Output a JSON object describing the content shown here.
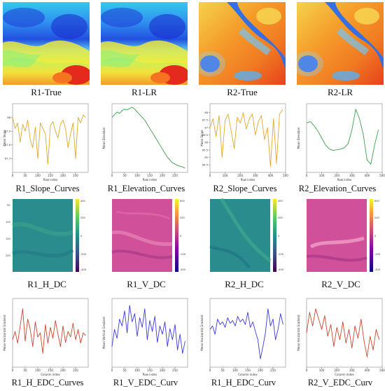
{
  "figure": {
    "captions": [
      "R1-True",
      "R1-LR",
      "R2-True",
      "R2-LR",
      "R1_Slope_Curves",
      "R1_Elevation_Curves",
      "R2_Slope_Curves",
      "R2_Elevation_Curves",
      "R1_H_DC",
      "R1_V_DC",
      "R2_H_DC",
      "R2_V_DC",
      "R1_H_EDC_Curves",
      "R1_V_EDC_Curv",
      "R1_H_EDC_Curv",
      "R2_V_EDC_Curv"
    ]
  },
  "colors": {
    "slope": "#e0a82a",
    "elevation": "#3aa04a",
    "h_edc": "#c8462f",
    "v_edc": "#3b3bd6",
    "r1_map": [
      "#1f3fd6",
      "#2c8ef0",
      "#36d0f0",
      "#8ff07a",
      "#f4ee3a",
      "#f7a12a",
      "#e4291d"
    ],
    "r2_map": [
      "#2f63e0",
      "#55b4f2",
      "#eaf07a",
      "#f7c23a",
      "#f48a22",
      "#e4361d"
    ],
    "dc_teal": "#2a8c8c",
    "dc_pink": "#d0509a"
  },
  "chart_data": [
    {
      "type": "heatmap",
      "id": "r1-true",
      "title": "R1-True"
    },
    {
      "type": "heatmap",
      "id": "r1-lr",
      "title": "R1-LR"
    },
    {
      "type": "heatmap",
      "id": "r2-true",
      "title": "R2-True"
    },
    {
      "type": "heatmap",
      "id": "r2-lr",
      "title": "R2-LR"
    },
    {
      "type": "line",
      "id": "r1-slope",
      "title": "R1_Slope_Curves",
      "xlabel": "Row index",
      "ylabel": "Mean Slope",
      "xlim": [
        0,
        300
      ],
      "ylim": [
        87.6,
        88.1
      ],
      "xticks": [
        0,
        50,
        100,
        150,
        200,
        250
      ],
      "yticks": [
        87.7,
        87.8,
        87.9,
        88.0
      ],
      "x": [
        0,
        10,
        20,
        30,
        40,
        50,
        60,
        70,
        80,
        90,
        100,
        110,
        120,
        130,
        140,
        150,
        160,
        170,
        180,
        190,
        200,
        210,
        220,
        230,
        240,
        250,
        260,
        270,
        280,
        290
      ],
      "series": [
        {
          "values": [
            88.0,
            87.92,
            87.96,
            87.82,
            87.95,
            87.9,
            87.98,
            87.84,
            87.78,
            87.93,
            87.7,
            87.96,
            87.92,
            87.88,
            87.66,
            87.94,
            87.97,
            87.9,
            87.85,
            87.95,
            87.98,
            87.92,
            87.78,
            87.88,
            87.96,
            87.7,
            88.0,
            87.96,
            88.02,
            88.0
          ]
        }
      ]
    },
    {
      "type": "line",
      "id": "r1-elevation",
      "title": "R1_Elevation_Curves",
      "xlabel": "Row index",
      "ylabel": "Mean Elevation",
      "xlim": [
        0,
        300
      ],
      "ylim": [
        0,
        100
      ],
      "xticks": [
        0,
        50,
        100,
        150,
        200,
        250
      ],
      "yticks": [],
      "x": [
        0,
        10,
        20,
        30,
        40,
        50,
        60,
        70,
        80,
        90,
        100,
        110,
        120,
        130,
        140,
        150,
        160,
        170,
        180,
        190,
        200,
        210,
        220,
        230,
        240,
        250,
        260,
        270,
        280,
        290
      ],
      "series": [
        {
          "values": [
            80,
            84,
            88,
            86,
            90,
            92,
            91,
            93,
            95,
            92,
            88,
            84,
            80,
            76,
            70,
            64,
            58,
            52,
            46,
            40,
            34,
            28,
            22,
            18,
            14,
            12,
            10,
            9,
            8,
            6
          ]
        }
      ]
    },
    {
      "type": "line",
      "id": "r2-slope",
      "title": "R2_Slope_Curves",
      "xlabel": "Row index",
      "ylabel": "Mean Slope",
      "xlim": [
        0,
        500
      ],
      "ylim": [
        84.0,
        88.6
      ],
      "xticks": [
        0,
        100,
        200,
        300,
        400,
        500
      ],
      "yticks": [
        84.5,
        85.0,
        85.5,
        86.0,
        86.5,
        87.0,
        87.5,
        88.0
      ],
      "x": [
        0,
        20,
        40,
        60,
        80,
        100,
        120,
        140,
        160,
        180,
        200,
        220,
        240,
        260,
        280,
        300,
        320,
        340,
        360,
        380,
        400,
        420,
        440,
        460,
        480
      ],
      "series": [
        {
          "values": [
            87.0,
            87.6,
            86.4,
            87.8,
            85.0,
            87.5,
            87.9,
            86.8,
            85.6,
            87.7,
            87.3,
            88.0,
            86.9,
            87.6,
            87.9,
            86.5,
            87.4,
            87.8,
            86.2,
            87.0,
            84.4,
            87.6,
            84.6,
            87.9,
            88.2
          ]
        }
      ]
    },
    {
      "type": "line",
      "id": "r2-elevation",
      "title": "R2_Elevation_Curves",
      "xlabel": "Row index",
      "ylabel": "Mean Elevation",
      "xlim": [
        0,
        500
      ],
      "ylim": [
        0,
        100
      ],
      "xticks": [
        0,
        100,
        200,
        300,
        400,
        500
      ],
      "yticks": [],
      "x": [
        0,
        25,
        50,
        75,
        100,
        125,
        150,
        175,
        200,
        225,
        250,
        275,
        300,
        325,
        350,
        375,
        400,
        425,
        450,
        475
      ],
      "series": [
        {
          "values": [
            72,
            74,
            68,
            60,
            50,
            40,
            34,
            32,
            33,
            34,
            36,
            42,
            62,
            92,
            78,
            55,
            18,
            12,
            40,
            62
          ]
        }
      ]
    },
    {
      "type": "heatmap",
      "id": "r1-h-dc",
      "title": "R1_H_DC"
    },
    {
      "type": "heatmap",
      "id": "r1-v-dc",
      "title": "R1_V_DC"
    },
    {
      "type": "heatmap",
      "id": "r2-h-dc",
      "title": "R2_H_DC"
    },
    {
      "type": "heatmap",
      "id": "r2-v-dc",
      "title": "R2_V_DC"
    },
    {
      "type": "line",
      "id": "r1-h-edc",
      "title": "R1_H_EDC_Curves",
      "xlabel": "Column index",
      "ylabel": "Mean Horizontal Gradient",
      "xlim": [
        0,
        300
      ],
      "ylim": [
        0,
        100
      ],
      "xticks": [
        0,
        50,
        100,
        150,
        200,
        250
      ],
      "yticks": [],
      "x": [
        0,
        10,
        20,
        30,
        40,
        50,
        60,
        70,
        80,
        90,
        100,
        110,
        120,
        130,
        140,
        150,
        160,
        170,
        180,
        190,
        200,
        210,
        220,
        230,
        240,
        250,
        260,
        270,
        280,
        290
      ],
      "series": [
        {
          "values": [
            40,
            52,
            35,
            60,
            85,
            38,
            70,
            55,
            30,
            66,
            44,
            50,
            20,
            62,
            35,
            58,
            42,
            68,
            48,
            30,
            60,
            36,
            52,
            44,
            64,
            40,
            55,
            35,
            50,
            46
          ]
        }
      ]
    },
    {
      "type": "line",
      "id": "r1-v-edc",
      "title": "R1_V_EDC_Curv",
      "xlabel": "Row index",
      "ylabel": "Mean Vertical Gradient",
      "xlim": [
        0,
        300
      ],
      "ylim": [
        0,
        100
      ],
      "xticks": [
        0,
        50,
        100,
        150,
        200,
        250
      ],
      "yticks": [],
      "x": [
        0,
        10,
        20,
        30,
        40,
        50,
        60,
        70,
        80,
        90,
        100,
        110,
        120,
        130,
        140,
        150,
        160,
        170,
        180,
        190,
        200,
        210,
        220,
        230,
        240,
        250,
        260,
        270,
        280,
        290
      ],
      "series": [
        {
          "values": [
            30,
            55,
            42,
            70,
            60,
            82,
            50,
            90,
            66,
            78,
            45,
            72,
            58,
            85,
            40,
            68,
            52,
            74,
            36,
            60,
            48,
            66,
            30,
            56,
            40,
            62,
            25,
            48,
            20,
            38
          ]
        }
      ]
    },
    {
      "type": "line",
      "id": "r2-h-edc-a",
      "title": "R1_H_EDC_Curv",
      "xlabel": "Column index",
      "ylabel": "Mean Horizontal Gradient",
      "xlim": [
        0,
        300
      ],
      "ylim": [
        0,
        100
      ],
      "xticks": [
        0,
        50,
        100,
        150,
        200,
        250
      ],
      "yticks": [],
      "x": [
        0,
        10,
        20,
        30,
        40,
        50,
        60,
        70,
        80,
        90,
        100,
        110,
        120,
        130,
        140,
        150,
        160,
        170,
        180,
        190,
        200,
        210,
        220,
        230,
        240,
        250,
        260,
        270,
        280,
        290
      ],
      "series": [
        {
          "values": [
            55,
            60,
            48,
            70,
            62,
            66,
            58,
            72,
            64,
            68,
            60,
            74,
            66,
            70,
            62,
            80,
            58,
            66,
            52,
            40,
            12,
            30,
            50,
            85,
            60,
            70,
            40,
            55,
            78,
            62
          ]
        }
      ]
    },
    {
      "type": "line",
      "id": "r2-v-edc",
      "title": "R2_V_EDC_Curv",
      "xlabel": "Column index",
      "ylabel": "Mean Horizontal Gradient",
      "xlim": [
        0,
        500
      ],
      "ylim": [
        0,
        100
      ],
      "xticks": [
        0,
        100,
        200,
        300,
        400,
        500
      ],
      "yticks": [],
      "x": [
        0,
        20,
        40,
        60,
        80,
        100,
        120,
        140,
        160,
        180,
        200,
        220,
        240,
        260,
        280,
        300,
        320,
        340,
        360,
        380,
        400,
        420,
        440,
        460,
        480
      ],
      "series": [
        {
          "values": [
            50,
            80,
            60,
            85,
            70,
            55,
            75,
            45,
            62,
            30,
            58,
            40,
            66,
            35,
            55,
            28,
            60,
            42,
            70,
            38,
            15,
            45,
            25,
            55,
            40
          ]
        }
      ]
    }
  ]
}
